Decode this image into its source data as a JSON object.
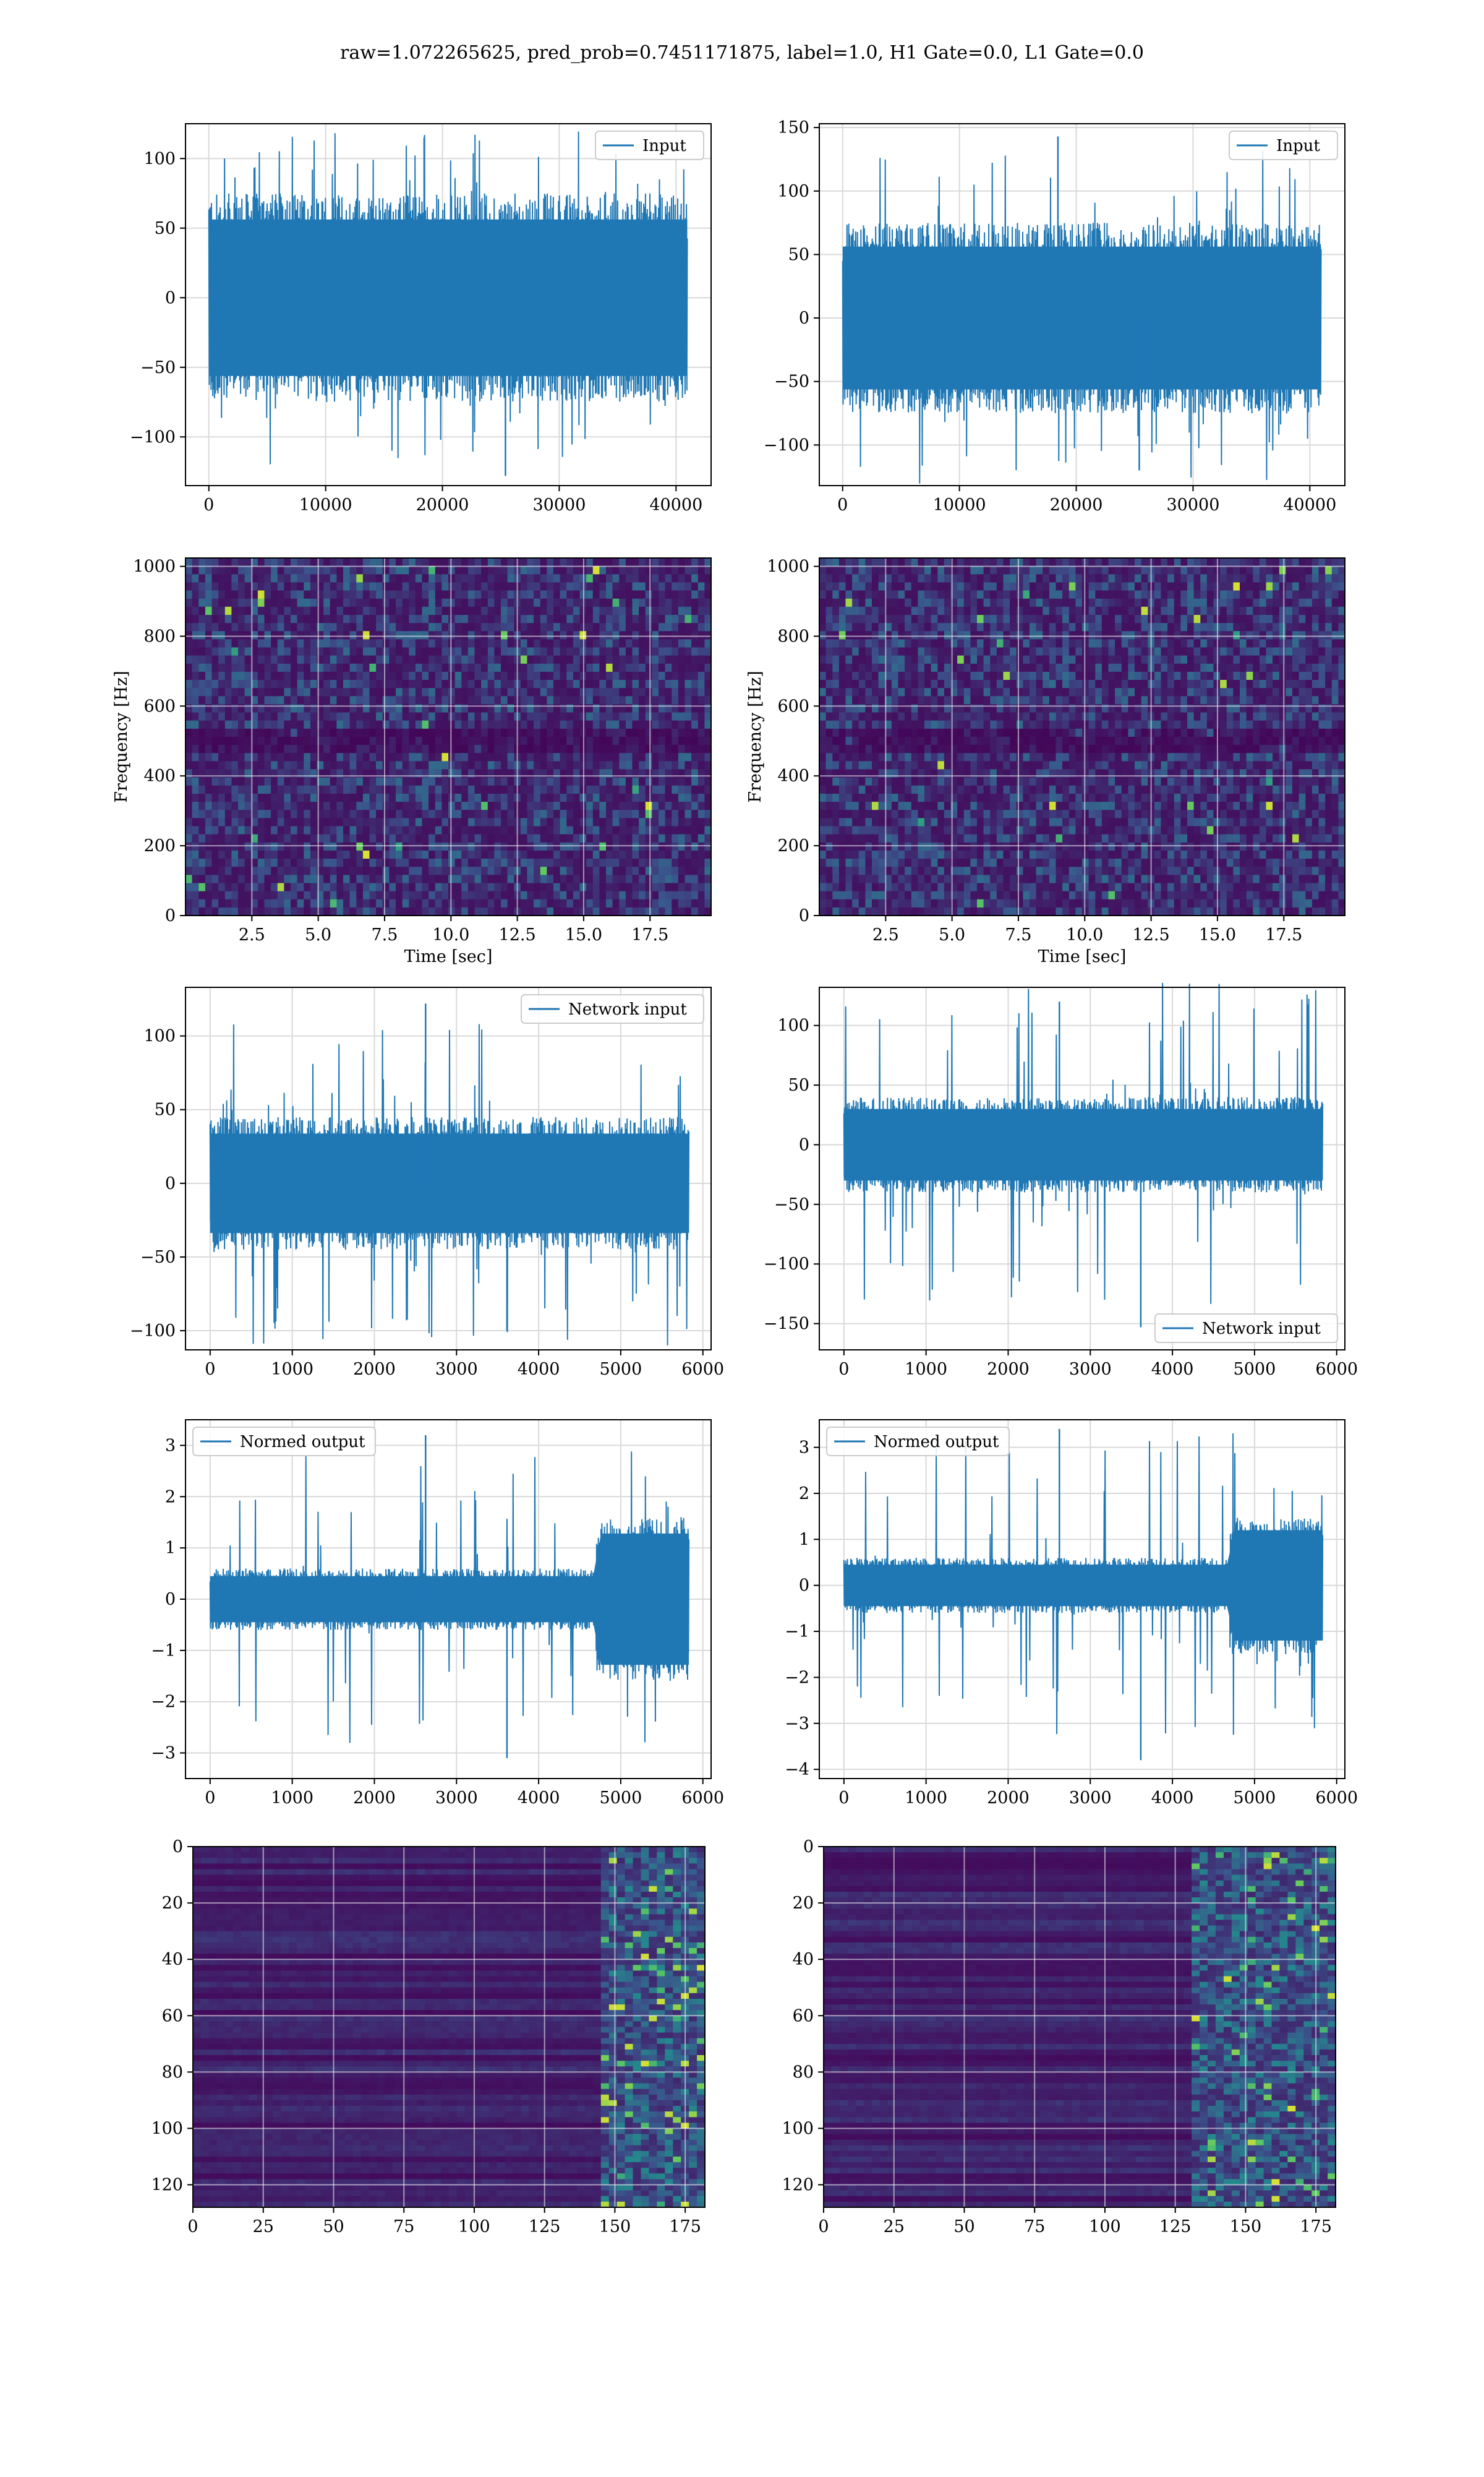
{
  "figure_title": "raw=1.072265625, pred_prob=0.7451171875, label=1.0, H1 Gate=0.0, L1 Gate=0.0",
  "colors": {
    "line": "#1f77b4",
    "grid": "#d9d9d9",
    "viridis": [
      "#440154",
      "#3b528b",
      "#21918c",
      "#5ec962",
      "#fde725"
    ]
  },
  "chart_data": [
    {
      "type": "line",
      "row": 1,
      "col": 1,
      "title": "",
      "xlabel": "",
      "ylabel": "",
      "legend": {
        "label": "Input",
        "position": "top-right"
      },
      "xlim": [
        -2000,
        43000
      ],
      "ylim": [
        -135,
        125
      ],
      "xticks": [
        0,
        10000,
        20000,
        30000,
        40000
      ],
      "yticks": [
        -100,
        -50,
        0,
        50,
        100
      ],
      "series": [
        {
          "x_range": [
            0,
            40960
          ],
          "band_low": -75,
          "band_high": 75,
          "peak_low": -128,
          "peak_high": 115
        }
      ],
      "grid": true
    },
    {
      "type": "line",
      "row": 1,
      "col": 2,
      "title": "",
      "xlabel": "",
      "ylabel": "",
      "legend": {
        "label": "Input",
        "position": "top-right"
      },
      "xlim": [
        -2000,
        43000
      ],
      "ylim": [
        -132,
        153
      ],
      "xticks": [
        0,
        10000,
        20000,
        30000,
        40000
      ],
      "yticks": [
        -100,
        -50,
        0,
        50,
        100,
        150
      ],
      "series": [
        {
          "x_range": [
            0,
            40960
          ],
          "band_low": -75,
          "band_high": 75,
          "peak_low": -120,
          "peak_high": 143
        }
      ],
      "grid": true
    },
    {
      "type": "heatmap",
      "row": 2,
      "col": 1,
      "title": "",
      "xlabel": "Time [sec]",
      "ylabel": "Frequency [Hz]",
      "xlim": [
        0,
        19.8
      ],
      "ylim": [
        0,
        1024
      ],
      "xticks": [
        2.5,
        5.0,
        7.5,
        10.0,
        12.5,
        15.0,
        17.5
      ],
      "xticklabels": [
        "2.5",
        "5.0",
        "7.5",
        "10.0",
        "12.5",
        "15.0",
        "17.5"
      ],
      "yticks": [
        0,
        200,
        400,
        600,
        800,
        1000
      ],
      "colormap": "viridis",
      "dark_band_hz": 500,
      "grid": true
    },
    {
      "type": "heatmap",
      "row": 2,
      "col": 2,
      "title": "",
      "xlabel": "Time [sec]",
      "ylabel": "Frequency [Hz]",
      "xlim": [
        0,
        19.8
      ],
      "ylim": [
        0,
        1024
      ],
      "xticks": [
        2.5,
        5.0,
        7.5,
        10.0,
        12.5,
        15.0,
        17.5
      ],
      "xticklabels": [
        "2.5",
        "5.0",
        "7.5",
        "10.0",
        "12.5",
        "15.0",
        "17.5"
      ],
      "yticks": [
        0,
        200,
        400,
        600,
        800,
        1000
      ],
      "colormap": "viridis",
      "dark_band_hz": 500,
      "grid": true
    },
    {
      "type": "line",
      "row": 3,
      "col": 1,
      "title": "",
      "xlabel": "",
      "ylabel": "",
      "legend": {
        "label": "Network input",
        "position": "top-right"
      },
      "xlim": [
        -300,
        6100
      ],
      "ylim": [
        -113,
        133
      ],
      "xticks": [
        0,
        1000,
        2000,
        3000,
        4000,
        5000,
        6000
      ],
      "yticks": [
        -100,
        -50,
        0,
        50,
        100
      ],
      "series": [
        {
          "x_range": [
            0,
            5830
          ],
          "band_low": -45,
          "band_high": 45,
          "peak_low": -100,
          "peak_high": 122
        }
      ],
      "grid": true
    },
    {
      "type": "line",
      "row": 3,
      "col": 2,
      "title": "",
      "xlabel": "",
      "ylabel": "",
      "legend": {
        "label": "Network input",
        "position": "bottom-right"
      },
      "xlim": [
        -300,
        6100
      ],
      "ylim": [
        -172,
        132
      ],
      "xticks": [
        0,
        1000,
        2000,
        3000,
        4000,
        5000,
        6000
      ],
      "yticks": [
        -150,
        -100,
        -50,
        0,
        50,
        100
      ],
      "series": [
        {
          "x_range": [
            0,
            5830
          ],
          "band_low": -40,
          "band_high": 40,
          "peak_low": -153,
          "peak_high": 120
        }
      ],
      "grid": true
    },
    {
      "type": "line",
      "row": 4,
      "col": 1,
      "title": "",
      "xlabel": "",
      "ylabel": "",
      "legend": {
        "label": "Normed output",
        "position": "top-left"
      },
      "xlim": [
        -300,
        6100
      ],
      "ylim": [
        -3.5,
        3.5
      ],
      "xticks": [
        0,
        1000,
        2000,
        3000,
        4000,
        5000,
        6000
      ],
      "yticks": [
        -3,
        -2,
        -1,
        0,
        1,
        2,
        3
      ],
      "series": [
        {
          "x_range": [
            0,
            5830
          ],
          "band_low": -0.6,
          "band_high": 0.6,
          "peak_low": -3.1,
          "peak_high": 3.2,
          "burst_start": 4700,
          "burst_band": 1.6
        }
      ],
      "grid": true
    },
    {
      "type": "line",
      "row": 4,
      "col": 2,
      "title": "",
      "xlabel": "",
      "ylabel": "",
      "legend": {
        "label": "Normed output",
        "position": "top-left"
      },
      "xlim": [
        -300,
        6100
      ],
      "ylim": [
        -4.2,
        3.6
      ],
      "xticks": [
        0,
        1000,
        2000,
        3000,
        4000,
        5000,
        6000
      ],
      "yticks": [
        -4,
        -3,
        -2,
        -1,
        0,
        1,
        2,
        3
      ],
      "series": [
        {
          "x_range": [
            0,
            5830
          ],
          "band_low": -0.6,
          "band_high": 0.6,
          "peak_low": -3.8,
          "peak_high": 3.4,
          "burst_start": 4700,
          "burst_band": 1.5
        }
      ],
      "grid": true
    },
    {
      "type": "heatmap",
      "row": 5,
      "col": 1,
      "title": "",
      "xlabel": "",
      "ylabel": "",
      "xlim": [
        0,
        182
      ],
      "ylim": [
        128,
        0
      ],
      "xticks": [
        0,
        25,
        50,
        75,
        100,
        125,
        150,
        175
      ],
      "xticklabels": [
        "0",
        "25",
        "50",
        "75",
        "100",
        "125",
        "150",
        "175"
      ],
      "yticks": [
        0,
        20,
        40,
        60,
        80,
        100,
        120
      ],
      "colormap": "viridis",
      "activity_start": 145,
      "grid": true
    },
    {
      "type": "heatmap",
      "row": 5,
      "col": 2,
      "title": "",
      "xlabel": "",
      "ylabel": "",
      "xlim": [
        0,
        182
      ],
      "ylim": [
        128,
        0
      ],
      "xticks": [
        0,
        25,
        50,
        75,
        100,
        125,
        150,
        175
      ],
      "xticklabels": [
        "0",
        "25",
        "50",
        "75",
        "100",
        "125",
        "150",
        "175"
      ],
      "yticks": [
        0,
        20,
        40,
        60,
        80,
        100,
        120
      ],
      "colormap": "viridis",
      "activity_start": 130,
      "grid": true
    }
  ]
}
